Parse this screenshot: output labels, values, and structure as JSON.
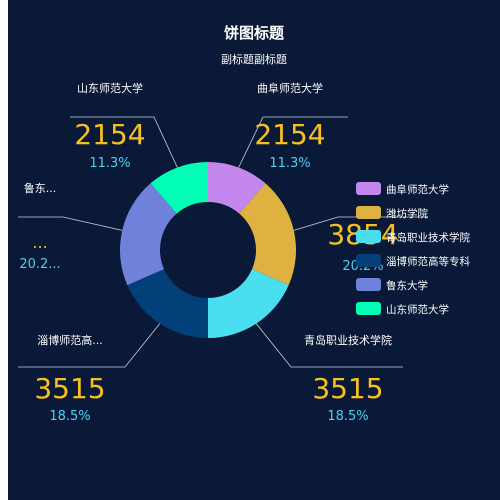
{
  "chart_data": {
    "type": "pie",
    "donut": true,
    "title": "饼图标题",
    "subtitle": "副标题副标题",
    "slices": [
      {
        "name": "曲阜师范大学",
        "value": 2154,
        "percent": "11.3%",
        "color": "#c487ee"
      },
      {
        "name": "潍坊学院",
        "value": 3854,
        "percent": "20.2%",
        "color": "#deb140"
      },
      {
        "name": "青岛职业技术学院",
        "value": 3515,
        "percent": "18.5%",
        "color": "#49dff0"
      },
      {
        "name": "淄博师范高等专科",
        "value": 3515,
        "percent": "18.5%",
        "color": "#034079"
      },
      {
        "name": "鲁东大学",
        "value": 3854,
        "percent": "20.2%",
        "color": "#6f81da"
      },
      {
        "name": "山东师范大学",
        "value": 2154,
        "percent": "11.3%",
        "color": "#00ffb4"
      }
    ],
    "legend_position": "right",
    "outer_label_names": [
      "曲阜师范大学",
      "潍坊学院",
      "青岛职业技术学院",
      "淄博师范高...",
      "鲁东...",
      "山东师范大学"
    ],
    "outer_label_values": [
      "2154",
      "3854",
      "3515",
      "3515",
      "...",
      "2154"
    ],
    "outer_label_percents": [
      "11.3%",
      "20.2%",
      "18.5%",
      "18.5%",
      "20.2...",
      "11.3%"
    ]
  },
  "colors": {
    "background": "#0a1937",
    "value_text": "#f6c022",
    "percent_text": "#4ad1f0",
    "leader_line": "#ffffff"
  }
}
